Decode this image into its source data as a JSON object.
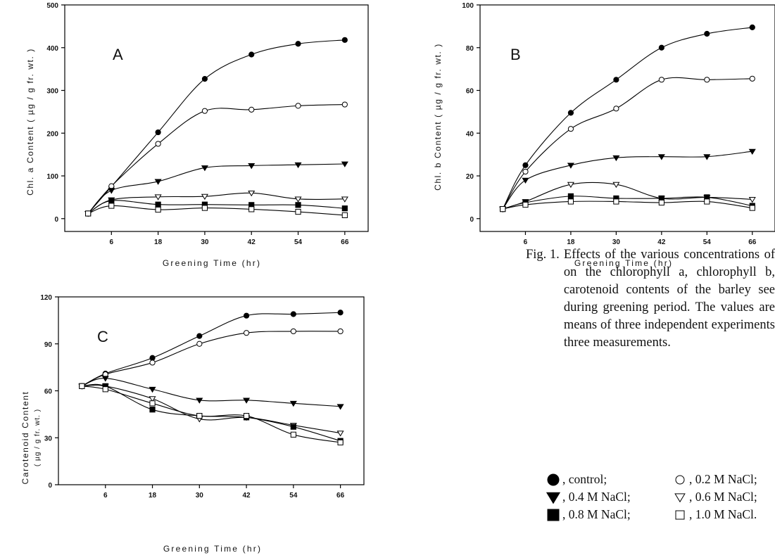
{
  "chart_data": [
    {
      "type": "line",
      "panel_label": "A",
      "xlabel": "Greening Time (hr)",
      "ylabel": "Chl. a Content ( µg / g fr. wt. )",
      "x": [
        0,
        6,
        18,
        30,
        42,
        54,
        66
      ],
      "x_ticks": [
        "6",
        "18",
        "30",
        "42",
        "54",
        "66"
      ],
      "ylim": [
        -30,
        500
      ],
      "y_ticks": [
        "0",
        "100",
        "200",
        "300",
        "400",
        "500"
      ],
      "series": [
        {
          "name": "control",
          "marker": "filled-circle",
          "values": [
            12,
            75,
            202,
            327,
            384,
            409,
            418
          ]
        },
        {
          "name": "0.2 M NaCl",
          "marker": "open-circle",
          "values": [
            12,
            76,
            175,
            252,
            255,
            264,
            267
          ]
        },
        {
          "name": "0.4 M NaCl",
          "marker": "filled-triangle-down",
          "values": [
            12,
            66,
            87,
            119,
            124,
            126,
            128
          ]
        },
        {
          "name": "0.6 M NaCl",
          "marker": "open-triangle-down",
          "values": [
            12,
            44,
            51,
            52,
            60,
            46,
            46
          ]
        },
        {
          "name": "0.8 M NaCl",
          "marker": "filled-square",
          "values": [
            12,
            42,
            33,
            33,
            32,
            32,
            24
          ]
        },
        {
          "name": "1.0 M NaCl",
          "marker": "open-square",
          "values": [
            12,
            30,
            21,
            25,
            22,
            16,
            8
          ]
        }
      ]
    },
    {
      "type": "line",
      "panel_label": "B",
      "xlabel": "Greening Time (hr)",
      "ylabel": "Chl. b Content ( µg / g fr. wt. )",
      "x": [
        0,
        6,
        18,
        30,
        42,
        54,
        66
      ],
      "x_ticks": [
        "6",
        "18",
        "30",
        "42",
        "54",
        "66"
      ],
      "ylim": [
        -6,
        100
      ],
      "y_ticks": [
        "0",
        "20",
        "40",
        "60",
        "80",
        "100"
      ],
      "series": [
        {
          "name": "control",
          "marker": "filled-circle",
          "values": [
            4.5,
            25,
            49.5,
            65,
            80,
            86.5,
            89.5
          ]
        },
        {
          "name": "0.2 M NaCl",
          "marker": "open-circle",
          "values": [
            4.5,
            22,
            42,
            51.5,
            65,
            65,
            65.5
          ]
        },
        {
          "name": "0.4 M NaCl",
          "marker": "filled-triangle-down",
          "values": [
            4.5,
            18,
            25,
            28.5,
            29,
            29,
            31.5
          ]
        },
        {
          "name": "0.6 M NaCl",
          "marker": "open-triangle-down",
          "values": [
            4.5,
            8,
            16,
            16,
            9.5,
            10,
            9
          ]
        },
        {
          "name": "0.8 M NaCl",
          "marker": "filled-square",
          "values": [
            4.5,
            7.5,
            10.5,
            9.5,
            9.5,
            10,
            6
          ]
        },
        {
          "name": "1.0 M NaCl",
          "marker": "open-square",
          "values": [
            4.5,
            6.5,
            8,
            8,
            7.5,
            8,
            5
          ]
        }
      ]
    },
    {
      "type": "line",
      "panel_label": "C",
      "xlabel": "Greening Time (hr)",
      "ylabel_line1": "Carotenoid Content",
      "ylabel_line2": "( µg / g fr. wt. )",
      "x": [
        0,
        6,
        18,
        30,
        42,
        54,
        66
      ],
      "x_ticks": [
        "6",
        "18",
        "30",
        "42",
        "54",
        "66"
      ],
      "ylim": [
        0,
        120
      ],
      "y_ticks": [
        "0",
        "30",
        "60",
        "90",
        "120"
      ],
      "series": [
        {
          "name": "control",
          "marker": "filled-circle",
          "values": [
            63,
            71,
            81,
            95,
            108,
            109,
            110
          ]
        },
        {
          "name": "0.2 M NaCl",
          "marker": "open-circle",
          "values": [
            63,
            70.5,
            78,
            90,
            97,
            98,
            98
          ]
        },
        {
          "name": "0.4 M NaCl",
          "marker": "filled-triangle-down",
          "values": [
            63,
            68,
            61,
            54,
            54,
            52,
            50
          ]
        },
        {
          "name": "0.6 M NaCl",
          "marker": "open-triangle-down",
          "values": [
            63,
            63,
            55,
            42,
            43,
            38,
            33
          ]
        },
        {
          "name": "0.8 M NaCl",
          "marker": "filled-square",
          "values": [
            63,
            63,
            48,
            44,
            43,
            37,
            28
          ]
        },
        {
          "name": "1.0 M NaCl",
          "marker": "open-square",
          "values": [
            63,
            61,
            52,
            44,
            44,
            32,
            27
          ]
        }
      ]
    }
  ],
  "caption": {
    "number": "Fig. 1.",
    "text": "Effects of the various concentrations of on the chlorophyll a, chlorophyll b, carotenoid contents of the barley see during greening period. The values are means of three independent experiments three measurements."
  },
  "legend": [
    {
      "marker": "filled-circle",
      "label": ", control;"
    },
    {
      "marker": "open-circle",
      "label": ", 0.2 M NaCl;"
    },
    {
      "marker": "filled-triangle-down",
      "label": ", 0.4 M NaCl;"
    },
    {
      "marker": "open-triangle-down",
      "label": ", 0.6 M NaCl;"
    },
    {
      "marker": "filled-square",
      "label": ", 0.8 M NaCl;"
    },
    {
      "marker": "open-square",
      "label": ", 1.0 M NaCl."
    }
  ]
}
